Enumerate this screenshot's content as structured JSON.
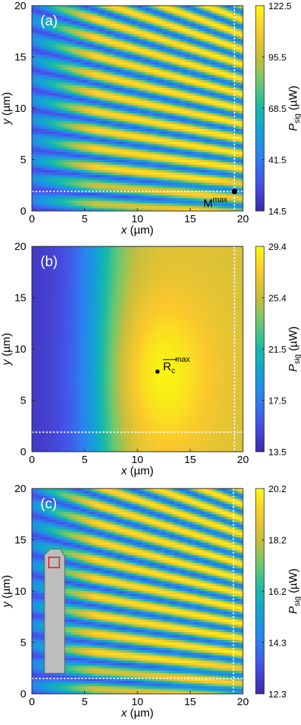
{
  "chart_data": [
    {
      "type": "heatmap",
      "panel_label": "(a)",
      "xlabel": "x (µm)",
      "ylabel": "y (µm)",
      "xlim": [
        0,
        20
      ],
      "ylim": [
        0,
        20
      ],
      "x_ticks": [
        "0",
        "5",
        "10",
        "15",
        "20"
      ],
      "y_ticks": [
        "0",
        "5",
        "10",
        "15",
        "20"
      ],
      "colorbar": {
        "label": "P",
        "label_sub": "sig",
        "unit": "(µW)",
        "ticks": [
          "14.5",
          "41.5",
          "68.5",
          "95.5",
          "122.5"
        ],
        "min": 14.5,
        "max": 122.5
      },
      "dashed_lines": {
        "x": 19.2,
        "y": 1.9
      },
      "marker": {
        "x": 19.2,
        "y": 1.9,
        "label": "M",
        "label_sup": "max"
      },
      "pattern": "fringes",
      "colors": {
        "low": "#3e26a8",
        "high": "#f9fb0e"
      }
    },
    {
      "type": "heatmap",
      "panel_label": "(b)",
      "xlabel": "x (µm)",
      "ylabel": "y (µm)",
      "xlim": [
        0,
        20
      ],
      "ylim": [
        0,
        20
      ],
      "x_ticks": [
        "0",
        "5",
        "10",
        "15",
        "20"
      ],
      "y_ticks": [
        "0",
        "5",
        "10",
        "15",
        "20"
      ],
      "colorbar": {
        "label": "P",
        "label_sub": "sig",
        "unit": "(µW)",
        "ticks": [
          "13.5",
          "17.5",
          "21.5",
          "25.4",
          "29.4"
        ],
        "min": 13.5,
        "max": 29.4
      },
      "dashed_lines": {
        "x": 19.2,
        "y": 1.9
      },
      "marker": {
        "x": 11.9,
        "y": 7.8,
        "label": "R",
        "label_sub": "c",
        "label_sup": "max"
      },
      "pattern": "smooth"
    },
    {
      "type": "heatmap",
      "panel_label": "(c)",
      "xlabel": "x (µm)",
      "ylabel": "y (µm)",
      "xlim": [
        0,
        20
      ],
      "ylim": [
        0,
        20
      ],
      "x_ticks": [
        "0",
        "5",
        "10",
        "15",
        "20"
      ],
      "y_ticks": [
        "0",
        "5",
        "10",
        "15",
        "20"
      ],
      "colorbar": {
        "label": "P",
        "label_sub": "sig",
        "unit": "(µW)",
        "ticks": [
          "12.3",
          "14.3",
          "16.2",
          "18.2",
          "20.2"
        ],
        "min": 12.3,
        "max": 20.2
      },
      "dashed_lines": {
        "x": 19.1,
        "y": 1.5
      },
      "probe": {
        "x_range": [
          1.2,
          3.1
        ],
        "y_bottom": 2.0,
        "y_top": 14.1,
        "color": "#bdbdbd"
      },
      "square": {
        "x": 1.6,
        "y": 12.3,
        "size": 1.0,
        "color": "#e0201b"
      },
      "pattern": "fringes"
    }
  ]
}
